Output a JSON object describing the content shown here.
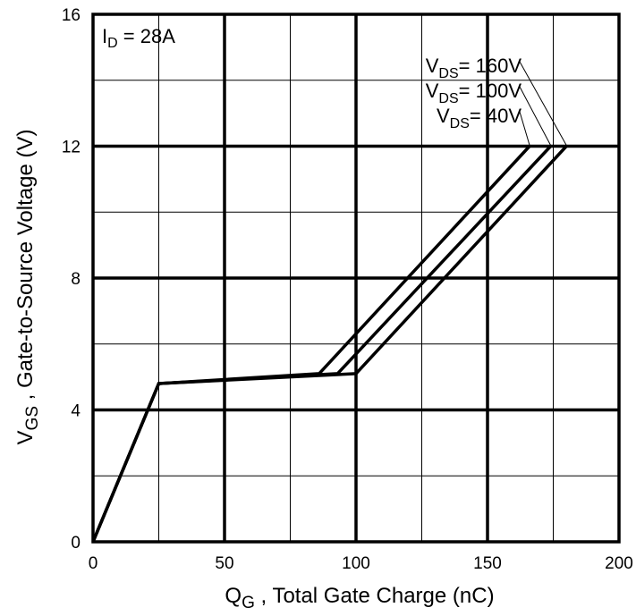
{
  "chart_data": {
    "type": "line",
    "xlabel": {
      "main": "Q",
      "sub": "G",
      "rest": " , Total Gate Charge (nC)"
    },
    "ylabel": {
      "main": "V",
      "sub": "GS",
      "rest": " , Gate-to-Source Voltage (V)"
    },
    "xlim": [
      0,
      200
    ],
    "ylim": [
      0,
      16
    ],
    "x_ticks": [
      0,
      50,
      100,
      150,
      200
    ],
    "y_ticks": [
      0,
      4,
      8,
      12,
      16
    ],
    "x_tick_labels": [
      "0",
      "50",
      "100",
      "150",
      "200"
    ],
    "y_tick_labels": [
      "0",
      "4",
      "8",
      "12",
      "16"
    ],
    "x_minor_step": 25,
    "y_minor_step": 2,
    "grid": true,
    "annotation": {
      "main": "I",
      "sub": "D",
      "rest": " = 28A"
    },
    "series": [
      {
        "name": "VDS= 160V",
        "label": {
          "main": "V",
          "sub": "DS",
          "rest": "= 160V"
        },
        "x": [
          0,
          25,
          100,
          180
        ],
        "y": [
          0,
          4.8,
          5.1,
          12
        ]
      },
      {
        "name": "VDS= 100V",
        "label": {
          "main": "V",
          "sub": "DS",
          "rest": "= 100V"
        },
        "x": [
          0,
          25,
          93,
          174
        ],
        "y": [
          0,
          4.8,
          5.1,
          12
        ]
      },
      {
        "name": "VDS= 40V",
        "label": {
          "main": "V",
          "sub": "DS",
          "rest": "= 40V"
        },
        "x": [
          0,
          25,
          86,
          166
        ],
        "y": [
          0,
          4.8,
          5.1,
          12
        ]
      }
    ]
  }
}
